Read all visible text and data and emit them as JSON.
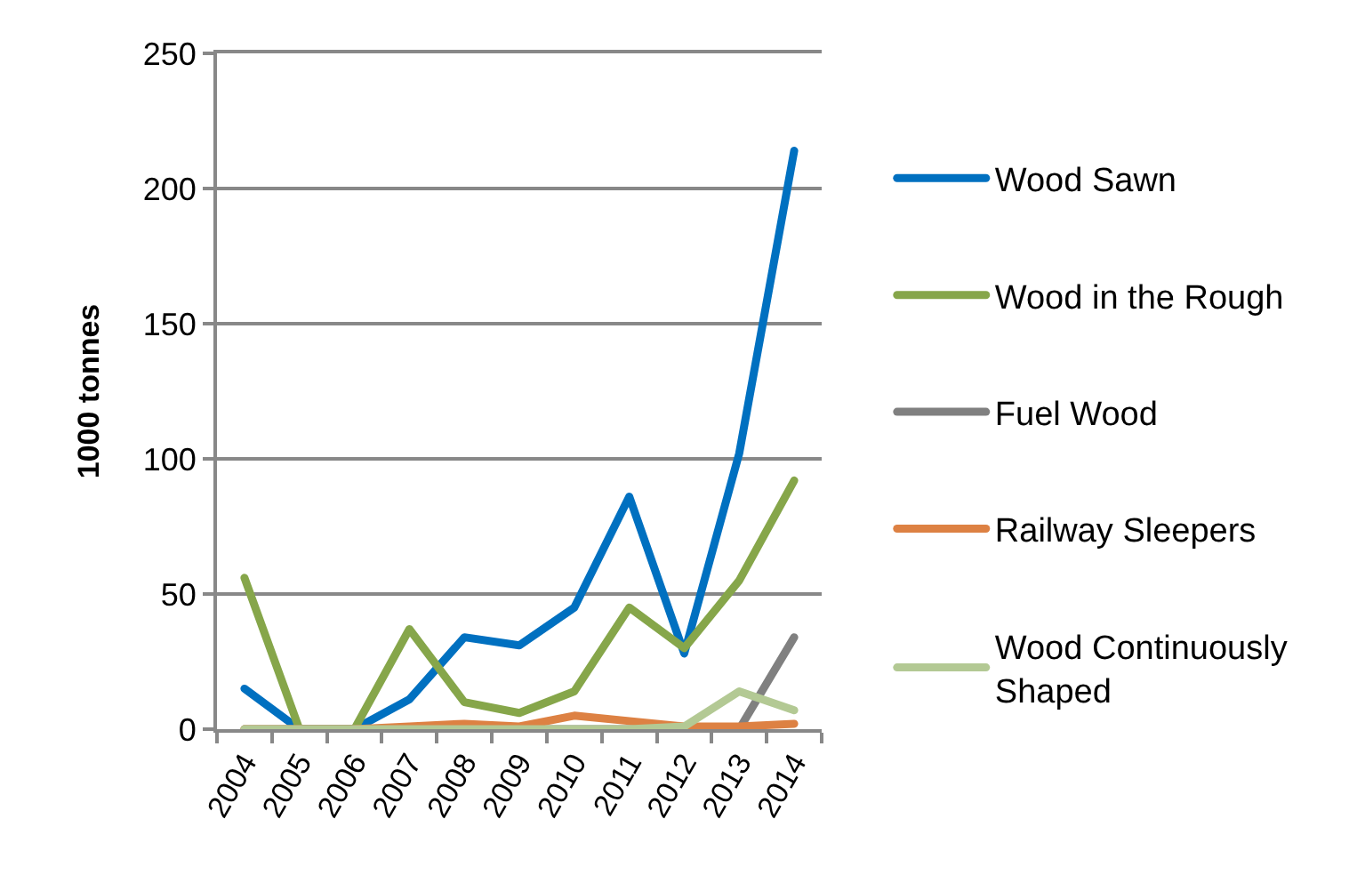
{
  "chart_data": {
    "type": "line",
    "ylabel": "1000 tonnes",
    "categories": [
      "2004",
      "2005",
      "2006",
      "2007",
      "2008",
      "2009",
      "2010",
      "2011",
      "2012",
      "2013",
      "2014"
    ],
    "series": [
      {
        "name": "Wood Sawn",
        "color": "#0070c0",
        "values": [
          15,
          0,
          0,
          11,
          34,
          31,
          45,
          86,
          28,
          102,
          214
        ]
      },
      {
        "name": "Wood in the Rough",
        "color": "#86a64a",
        "values": [
          56,
          0,
          0,
          37,
          10,
          6,
          14,
          45,
          30,
          55,
          92
        ]
      },
      {
        "name": "Fuel Wood",
        "color": "#808080",
        "values": [
          0,
          0,
          0,
          0,
          0,
          0,
          0,
          0,
          0,
          0,
          34
        ]
      },
      {
        "name": "Railway Sleepers",
        "color": "#dd8143",
        "values": [
          0,
          0,
          0,
          1,
          2,
          1,
          5,
          3,
          1,
          1,
          2
        ]
      },
      {
        "name": "Wood Continuously Shaped",
        "color": "#b3c994",
        "values": [
          0,
          0,
          0,
          0,
          0,
          0,
          0,
          0,
          1,
          14,
          7
        ]
      }
    ],
    "ylim": [
      0,
      250
    ],
    "yticks": [
      0,
      50,
      100,
      150,
      200,
      250
    ],
    "grid": "y",
    "legend": "right",
    "line_style": "solid"
  }
}
